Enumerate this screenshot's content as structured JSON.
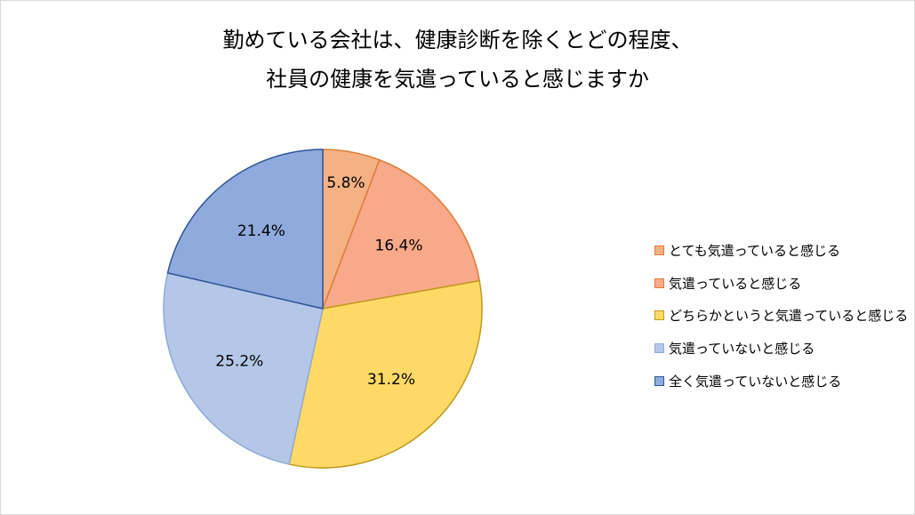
{
  "chart_data": {
    "type": "pie",
    "title_lines": [
      "勤めている会社は、健康診断を除くとどの程度、",
      "社員の健康を気遣っていると感じますか"
    ],
    "categories": [
      "とても気遣っていると感じる",
      "気遣っていると感じる",
      "どちらかというと気遣っていると感じる",
      "気遣っていないと感じる",
      "全く気遣っていないと感じる"
    ],
    "values": [
      5.8,
      16.4,
      31.2,
      25.2,
      21.4
    ],
    "labels": [
      "5.8%",
      "16.4%",
      "31.2%",
      "25.2%",
      "21.4%"
    ],
    "colors": [
      "#f4b183",
      "#f8a98a",
      "#ffd966",
      "#b4c7e7",
      "#8faadc"
    ],
    "edge_colors": [
      "#e07b39",
      "#e07b39",
      "#c09a1e",
      "#8faadc",
      "#2f5597"
    ],
    "legend_position": "right",
    "start_angle_deg": 0,
    "direction": "clockwise"
  }
}
